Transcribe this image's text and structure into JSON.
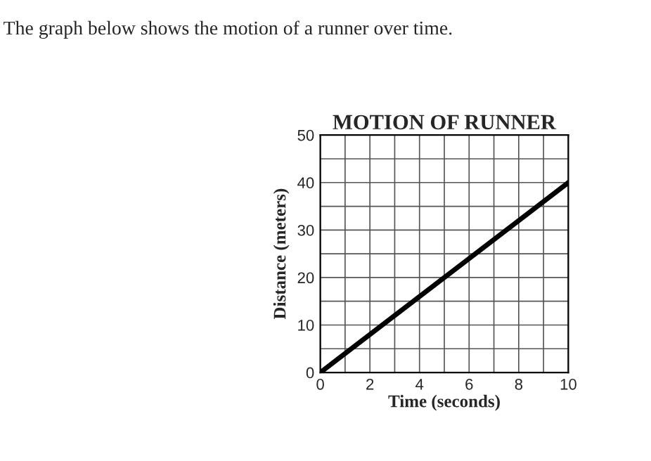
{
  "chart_data": {
    "type": "line",
    "title": "MOTION OF RUNNER",
    "xlabel": "Time (seconds)",
    "ylabel": "Distance (meters)",
    "annotations": [
      "The graph below shows the motion of a runner over time."
    ],
    "x": [
      0,
      10
    ],
    "series": [
      {
        "color": "#000000",
        "values": [
          0,
          40
        ]
      }
    ],
    "xlim": [
      0,
      10
    ],
    "ylim": [
      0,
      50
    ],
    "xticks": [
      0,
      {
        "value": 1,
        "label": null
      },
      2,
      {
        "value": 3,
        "label": null
      },
      4,
      {
        "value": 5,
        "label": null
      },
      6,
      {
        "value": 7,
        "label": null
      },
      8,
      {
        "value": 9,
        "label": null
      },
      10
    ],
    "yticks": [
      0,
      {
        "value": 5,
        "label": null
      },
      10,
      {
        "value": 15,
        "label": null
      },
      20,
      {
        "value": 25,
        "label": null
      },
      30,
      {
        "value": 35,
        "label": null
      },
      40,
      {
        "value": 45,
        "label": null
      },
      50
    ],
    "grid": true,
    "marker": "none",
    "line_style": "solid",
    "legend": false
  }
}
